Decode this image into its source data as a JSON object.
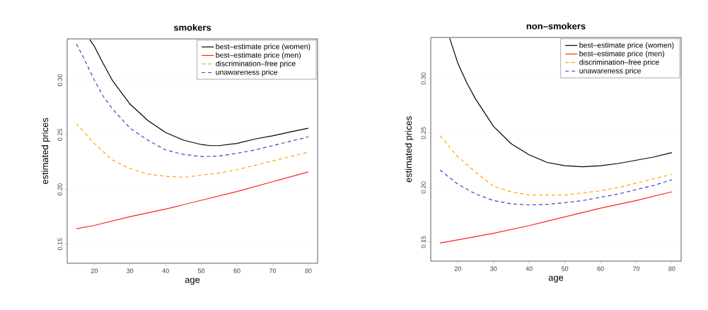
{
  "chart_data": [
    {
      "type": "line",
      "title": "smokers",
      "xlabel": "age",
      "ylabel": "estimated prices",
      "xlim": [
        12.4,
        82.6
      ],
      "ylim": [
        0.1324,
        0.3376
      ],
      "xticks": [
        20,
        30,
        40,
        50,
        60,
        70,
        80
      ],
      "yticks": [
        {
          "value": 0.15,
          "label": "0.15"
        },
        {
          "value": 0.2,
          "label": "0.20"
        },
        {
          "value": 0.25,
          "label": "0.25"
        },
        {
          "value": 0.3,
          "label": "0.30"
        }
      ],
      "grid": "y",
      "legend": "top right",
      "series": [
        {
          "name": "best–estimate price (women)",
          "color": "#000000",
          "line_style": "solid",
          "x": [
            18.7,
            20,
            22,
            25,
            30,
            35,
            40,
            45,
            50,
            52.5,
            55,
            60,
            65,
            70,
            75,
            80
          ],
          "values": [
            0.337,
            0.331,
            0.318,
            0.3,
            0.278,
            0.263,
            0.252,
            0.245,
            0.241,
            0.24,
            0.24,
            0.242,
            0.246,
            0.249,
            0.2525,
            0.256
          ]
        },
        {
          "name": "best–estimate price (men)",
          "color": "#ff2020",
          "line_style": "solid",
          "x": [
            15,
            20,
            30,
            40,
            50,
            60,
            70,
            80
          ],
          "values": [
            0.164,
            0.167,
            0.175,
            0.182,
            0.19,
            0.198,
            0.207,
            0.216
          ]
        },
        {
          "name": "discrimination–free price",
          "color": "#ffa500",
          "line_style": "dashed",
          "x": [
            15,
            20,
            25,
            30,
            35,
            40,
            45,
            50,
            55,
            60,
            65,
            70,
            75,
            80
          ],
          "values": [
            0.26,
            0.242,
            0.227,
            0.219,
            0.214,
            0.212,
            0.211,
            0.213,
            0.215,
            0.218,
            0.222,
            0.226,
            0.23,
            0.234
          ]
        },
        {
          "name": "unawareness price",
          "color": "#4040c0",
          "line_style": "dashed",
          "x": [
            15,
            17.5,
            20,
            22.5,
            25,
            30,
            35,
            40,
            45,
            50,
            55,
            60,
            65,
            70,
            75,
            80
          ],
          "values": [
            0.333,
            0.317,
            0.3,
            0.285,
            0.274,
            0.256,
            0.245,
            0.236,
            0.232,
            0.23,
            0.2305,
            0.233,
            0.236,
            0.24,
            0.244,
            0.248
          ]
        }
      ]
    },
    {
      "type": "line",
      "title": "non–smokers",
      "xlabel": "age",
      "ylabel": "estimated prices",
      "xlim": [
        12.4,
        82.6
      ],
      "ylim": [
        0.1324,
        0.3376
      ],
      "xticks": [
        20,
        30,
        40,
        50,
        60,
        70,
        80
      ],
      "yticks": [
        {
          "value": 0.15,
          "label": "0.15"
        },
        {
          "value": 0.2,
          "label": "0.20"
        },
        {
          "value": 0.25,
          "label": "0.25"
        },
        {
          "value": 0.3,
          "label": "0.30"
        }
      ],
      "grid": "y",
      "legend": "top right",
      "series": [
        {
          "name": "best–estimate price (women)",
          "color": "#000000",
          "line_style": "solid",
          "x": [
            17.7,
            20,
            22.5,
            25,
            30,
            35,
            40,
            45,
            50,
            55,
            60,
            65,
            70,
            75,
            80
          ],
          "values": [
            0.337,
            0.314,
            0.296,
            0.281,
            0.256,
            0.24,
            0.23,
            0.223,
            0.22,
            0.219,
            0.22,
            0.222,
            0.225,
            0.228,
            0.232
          ]
        },
        {
          "name": "best–estimate price (men)",
          "color": "#ff2020",
          "line_style": "solid",
          "x": [
            15,
            20,
            30,
            40,
            50,
            60,
            70,
            80
          ],
          "values": [
            0.149,
            0.152,
            0.158,
            0.165,
            0.173,
            0.181,
            0.188,
            0.196
          ]
        },
        {
          "name": "discrimination–free price",
          "color": "#ffa500",
          "line_style": "dashed",
          "x": [
            15,
            20,
            25,
            30,
            35,
            40,
            45,
            50,
            55,
            60,
            65,
            70,
            75,
            80
          ],
          "values": [
            0.2475,
            0.228,
            0.214,
            0.201,
            0.196,
            0.193,
            0.193,
            0.193,
            0.195,
            0.197,
            0.2,
            0.204,
            0.208,
            0.212
          ]
        },
        {
          "name": "unawareness price",
          "color": "#4040c0",
          "line_style": "dashed",
          "x": [
            15,
            20,
            25,
            30,
            35,
            40,
            45,
            50,
            55,
            60,
            65,
            70,
            75,
            80
          ],
          "values": [
            0.216,
            0.203,
            0.194,
            0.188,
            0.185,
            0.184,
            0.1845,
            0.186,
            0.188,
            0.191,
            0.194,
            0.198,
            0.202,
            0.207
          ]
        }
      ]
    }
  ]
}
